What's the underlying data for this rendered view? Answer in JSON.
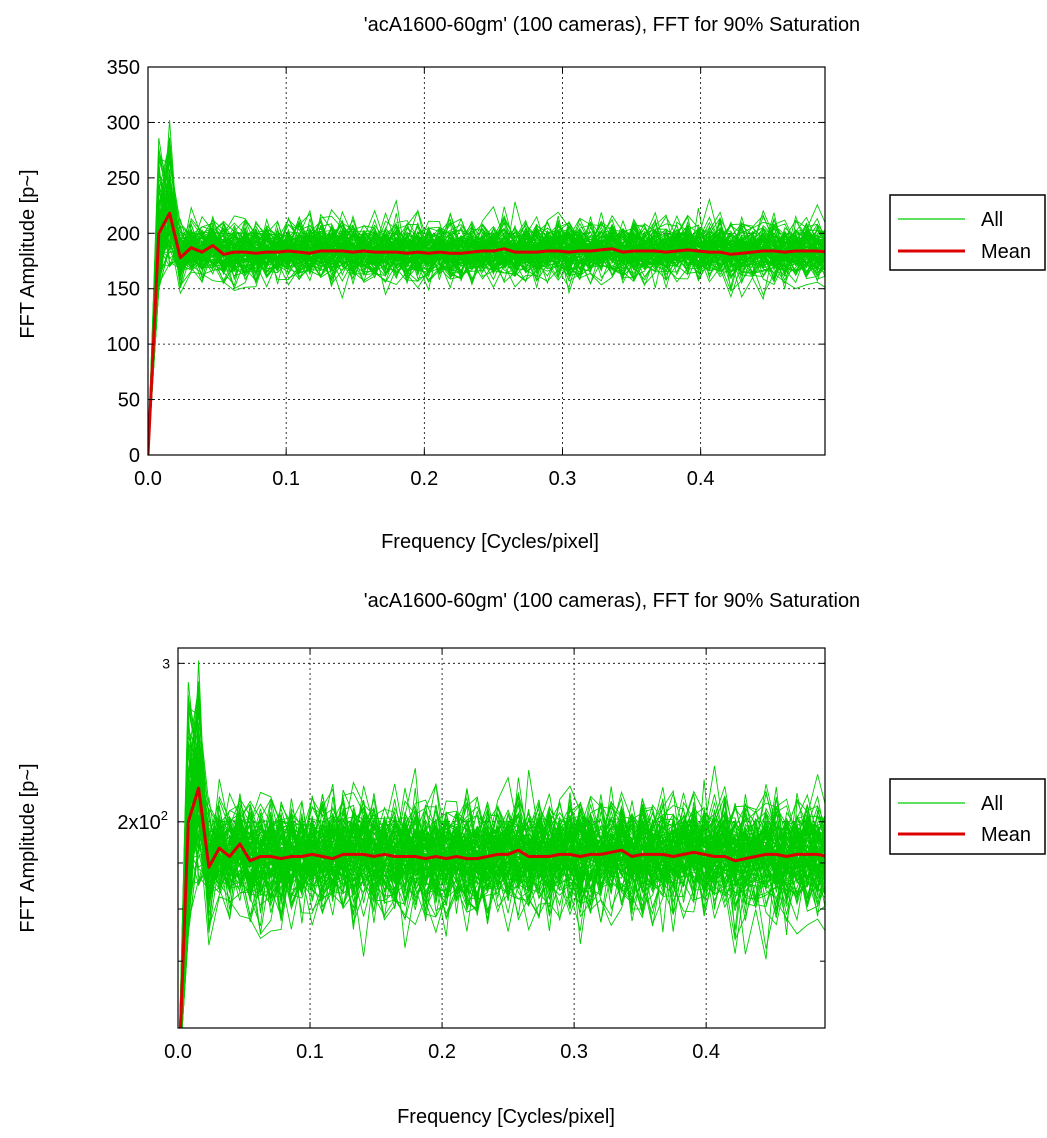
{
  "chart_data": [
    {
      "type": "line",
      "title": "'acA1600-60gm' (100 cameras), FFT for 90% Saturation",
      "xlabel": "Frequency [Cycles/pixel]",
      "ylabel": "FFT Amplitude [p~]",
      "xlim": [
        0,
        0.49
      ],
      "ylim": [
        0,
        350
      ],
      "y_scale": "linear",
      "x_ticks": [
        0.0,
        0.1,
        0.2,
        0.3,
        0.4
      ],
      "x_tick_labels": [
        "0.0",
        "0.1",
        "0.2",
        "0.3",
        "0.4"
      ],
      "y_ticks": [
        0,
        50,
        100,
        150,
        200,
        250,
        300,
        350
      ],
      "y_tick_labels": [
        "0",
        "50",
        "100",
        "150",
        "200",
        "250",
        "300",
        "350"
      ],
      "grid": true,
      "legend_position": "right",
      "series": [
        {
          "name": "All",
          "color": "#00cc00",
          "description": "100 camera curves, values scatter roughly 150-215 around the mean, peaking near 300 at low frequency",
          "count": 100
        },
        {
          "name": "Mean",
          "color": "#dd0000",
          "x": [
            0.0,
            0.0078,
            0.0156,
            0.0234,
            0.0313,
            0.0391,
            0.0469,
            0.0547,
            0.0625,
            0.0703,
            0.0781,
            0.0859,
            0.0938,
            0.1016,
            0.1094,
            0.1172,
            0.125,
            0.1328,
            0.1406,
            0.1484,
            0.1563,
            0.1641,
            0.1719,
            0.1797,
            0.1875,
            0.1953,
            0.2031,
            0.2109,
            0.2188,
            0.2266,
            0.2344,
            0.2422,
            0.25,
            0.2578,
            0.2656,
            0.2734,
            0.2813,
            0.2891,
            0.2969,
            0.3047,
            0.3125,
            0.3203,
            0.3281,
            0.3359,
            0.3438,
            0.3516,
            0.3594,
            0.3672,
            0.375,
            0.3828,
            0.3906,
            0.3984,
            0.4063,
            0.4141,
            0.4219,
            0.4297,
            0.4375,
            0.4453,
            0.4531,
            0.4609,
            0.4688,
            0.4766,
            0.4844,
            0.4922
          ],
          "y": [
            0,
            200,
            218,
            178,
            187,
            183,
            189,
            181,
            183,
            183,
            182,
            183,
            183,
            184,
            183,
            182,
            184,
            184,
            184,
            183,
            184,
            183,
            183,
            183,
            182,
            183,
            182,
            183,
            182,
            182,
            183,
            184,
            184,
            186,
            183,
            183,
            183,
            184,
            184,
            183,
            184,
            184,
            185,
            186,
            183,
            184,
            184,
            184,
            183,
            184,
            185,
            184,
            183,
            183,
            181,
            182,
            183,
            184,
            184,
            183,
            184,
            184,
            184,
            183
          ]
        }
      ]
    },
    {
      "type": "line",
      "title": "'acA1600-60gm' (100 cameras), FFT for 90% Saturation",
      "xlabel": "Frequency [Cycles/pixel]",
      "ylabel": "FFT Amplitude [p~]",
      "xlim": [
        0,
        0.49
      ],
      "y_scale": "log",
      "x_ticks": [
        0.0,
        0.1,
        0.2,
        0.3,
        0.4
      ],
      "x_tick_labels": [
        "0.0",
        "0.1",
        "0.2",
        "0.3",
        "0.4"
      ],
      "y_tick_labels": [
        "3",
        "2x10²"
      ],
      "grid": true,
      "legend_position": "right",
      "series": [
        {
          "name": "All",
          "color": "#00cc00"
        },
        {
          "name": "Mean",
          "color": "#dd0000"
        }
      ]
    }
  ]
}
